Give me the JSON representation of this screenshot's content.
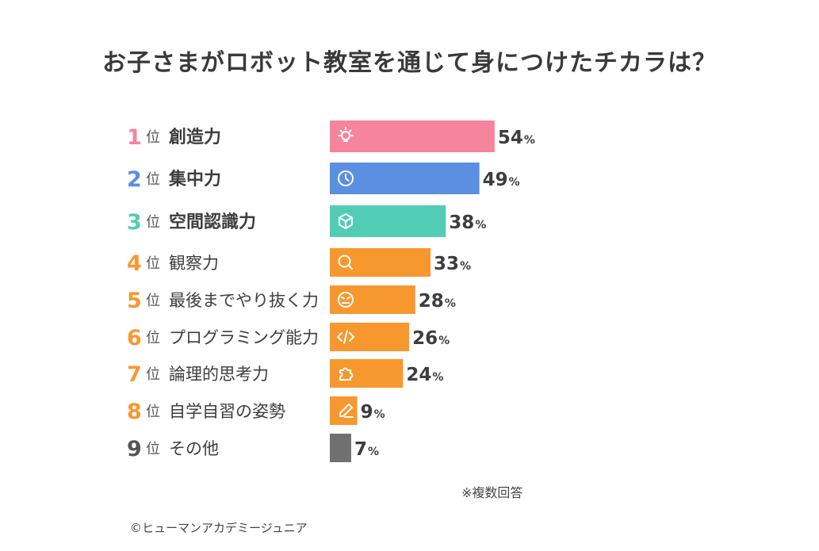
{
  "chart_data": {
    "type": "bar",
    "orientation": "horizontal",
    "title": "お子さまがロボット教室を通じて身につけたチカラは？",
    "rank_suffix": "位",
    "value_suffix": "%",
    "xlim": [
      0,
      100
    ],
    "categories": [
      "創造力",
      "集中力",
      "空間認識力",
      "観察力",
      "最後までやり抜く力",
      "プログラミング能力",
      "論理的思考力",
      "自学自習の姿勢",
      "その他"
    ],
    "ranks": [
      "1",
      "2",
      "3",
      "4",
      "5",
      "6",
      "7",
      "8",
      "9"
    ],
    "values": [
      54,
      49,
      38,
      33,
      28,
      26,
      24,
      9,
      7
    ],
    "icons": [
      "lightbulb-icon",
      "clock-icon",
      "cube-icon",
      "magnifier-icon",
      "determined-face-icon",
      "code-icon",
      "puzzle-icon",
      "pencil-icon",
      ""
    ],
    "colors": [
      "#f7849d",
      "#5a8fe2",
      "#52cdb5",
      "#f7982f",
      "#f7982f",
      "#f7982f",
      "#f7982f",
      "#f7982f",
      "#707070"
    ],
    "rank_colors": [
      "#f7849d",
      "#5a8fe2",
      "#52cdb5",
      "#f7982f",
      "#f7982f",
      "#f7982f",
      "#f7982f",
      "#f7982f",
      "#555555"
    ],
    "note": "※複数回答",
    "copyright": "©ヒューマンアカデミージュニア"
  }
}
